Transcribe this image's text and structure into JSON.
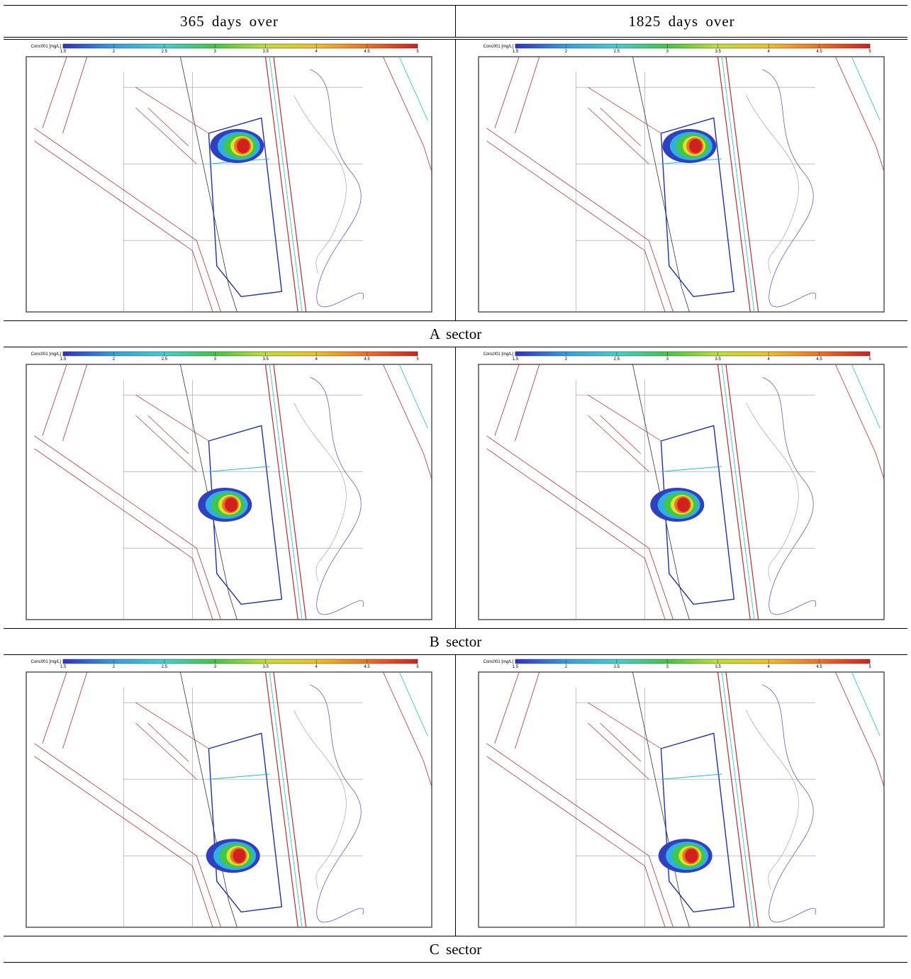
{
  "header": {
    "columns": [
      "365 days over",
      "1825 days over"
    ]
  },
  "colorbar": {
    "label": "Conc001 [mg/L]",
    "ticks": [
      1.5,
      2,
      2.5,
      3,
      3.5,
      4,
      4.5,
      5
    ]
  },
  "rows": [
    {
      "label": "A sector"
    },
    {
      "label": "B sector"
    },
    {
      "label": "C sector"
    }
  ]
}
